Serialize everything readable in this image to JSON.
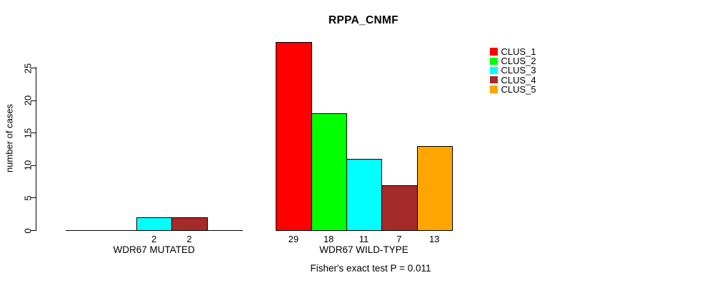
{
  "title": "RPPA_CNMF",
  "subtitle": "Fisher's exact test P = 0.011",
  "y_axis": {
    "label": "number of cases",
    "ticks": [
      0,
      5,
      10,
      15,
      20,
      25
    ]
  },
  "legend": {
    "items": [
      {
        "label": "CLUS_1",
        "color": "#ff0000"
      },
      {
        "label": "CLUS_2",
        "color": "#00ff00"
      },
      {
        "label": "CLUS_3",
        "color": "#00ffff"
      },
      {
        "label": "CLUS_4",
        "color": "#a52a2a"
      },
      {
        "label": "CLUS_5",
        "color": "#ffa500"
      }
    ]
  },
  "chart_data": {
    "type": "bar",
    "title": "RPPA_CNMF",
    "xlabel": "",
    "ylabel": "number of cases",
    "yticks": [
      0,
      5,
      10,
      15,
      20,
      25
    ],
    "ylim": [
      0,
      29
    ],
    "grid": false,
    "legend_position": "top-right",
    "series_names": [
      "CLUS_1",
      "CLUS_2",
      "CLUS_3",
      "CLUS_4",
      "CLUS_5"
    ],
    "colors": [
      "#ff0000",
      "#00ff00",
      "#00ffff",
      "#a52a2a",
      "#ffa500"
    ],
    "groups": [
      {
        "label": "WDR67 MUTATED",
        "values": [
          0,
          0,
          2,
          2,
          0
        ]
      },
      {
        "label": "WDR67 WILD-TYPE",
        "values": [
          29,
          18,
          11,
          7,
          13
        ]
      }
    ],
    "value_label_rule": "bar count printed under each non-zero bar",
    "annotation": "Fisher's exact test P = 0.011"
  }
}
